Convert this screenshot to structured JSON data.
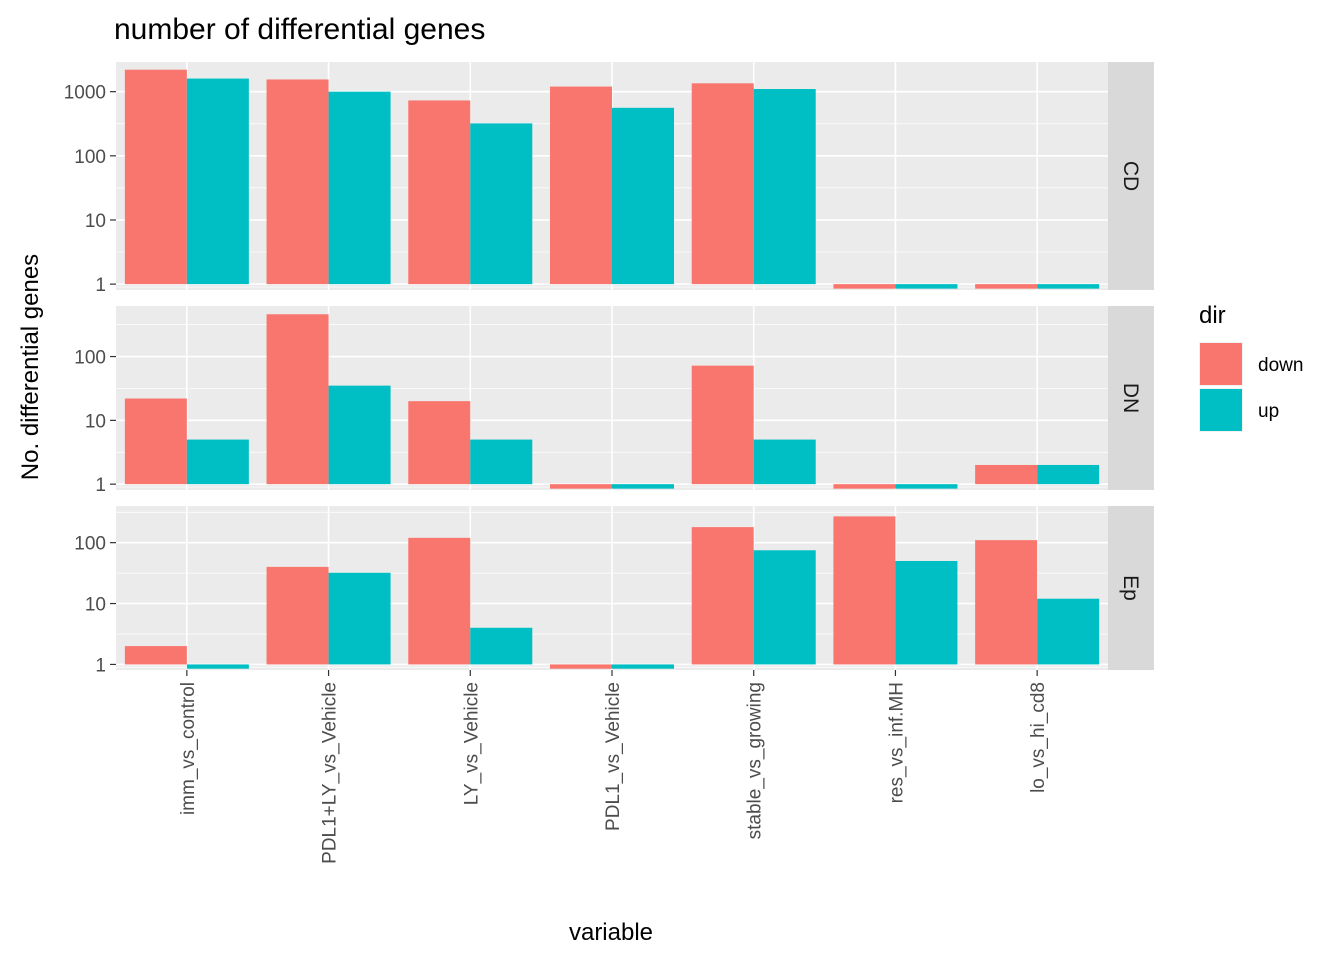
{
  "chart_data": {
    "type": "bar",
    "title": "number of differential genes",
    "xlabel": "variable",
    "ylabel": "No. differential genes",
    "y_scale": "log10",
    "grid": true,
    "legend": {
      "title": "dir",
      "position": "right"
    },
    "categories": [
      "imm_vs_control",
      "PDL1+LY_vs_Vehicle",
      "LY_vs_Vehicle",
      "PDL1_vs_Vehicle",
      "stable_vs_growing",
      "res_vs_inf.MH",
      "lo_vs_hi_cd8"
    ],
    "series_styles": [
      {
        "name": "down",
        "color": "#F8766D"
      },
      {
        "name": "up",
        "color": "#00BFC4"
      }
    ],
    "panels": [
      {
        "label": "CD",
        "y_ticks": [
          1,
          10,
          100,
          1000
        ],
        "ylim": [
          0.81,
          2900
        ],
        "series": [
          {
            "name": "down",
            "values": [
              2200,
              1550,
              730,
              1200,
              1350,
              0.85,
              0.85
            ]
          },
          {
            "name": "up",
            "values": [
              1600,
              1000,
              320,
              560,
              1100,
              0.85,
              0.85
            ]
          }
        ]
      },
      {
        "label": "DN",
        "y_ticks": [
          1,
          10,
          100
        ],
        "ylim": [
          0.81,
          620
        ],
        "series": [
          {
            "name": "down",
            "values": [
              22,
              460,
              20,
              0.85,
              72,
              0.85,
              2
            ]
          },
          {
            "name": "up",
            "values": [
              5,
              35,
              5,
              0.85,
              5,
              0.85,
              2
            ]
          }
        ]
      },
      {
        "label": "Ep",
        "y_ticks": [
          1,
          10,
          100
        ],
        "ylim": [
          0.81,
          400
        ],
        "series": [
          {
            "name": "down",
            "values": [
              2,
              40,
              120,
              0.85,
              180,
              270,
              110
            ]
          },
          {
            "name": "up",
            "values": [
              0.85,
              32,
              4,
              0.85,
              75,
              50,
              12
            ]
          }
        ]
      }
    ]
  }
}
